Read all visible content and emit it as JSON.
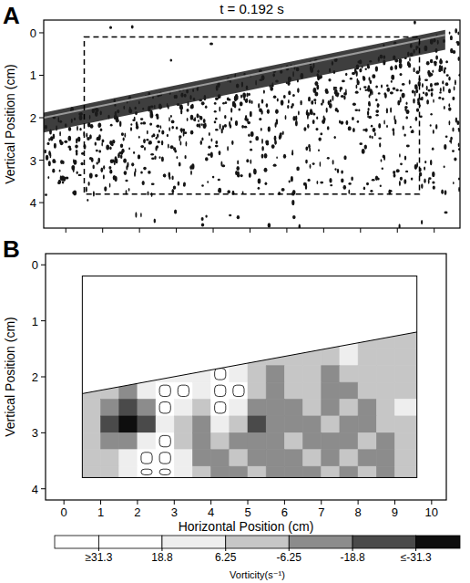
{
  "chart_data": [
    {
      "type": "image",
      "panel": "A",
      "title": "t = 0.192 s",
      "ylabel": "Vertical Position (cm)",
      "xlim": [
        -0.6,
        10.7
      ],
      "ylim": [
        4.6,
        -0.3
      ],
      "xticks": [
        0,
        1,
        2,
        3,
        4,
        5,
        6,
        7,
        8,
        9,
        10
      ],
      "yticks": [
        0,
        1,
        2,
        3,
        4
      ],
      "tick_labels": "y",
      "surface": {
        "x": [
          -0.6,
          10.3
        ],
        "y": [
          2.0,
          0.05
        ]
      },
      "roi": {
        "x": [
          0.5,
          9.6
        ],
        "y": [
          0.1,
          3.8
        ]
      }
    },
    {
      "type": "heatmap",
      "panel": "B",
      "xlabel": "Horizontal Position (cm)",
      "ylabel": "Vertical Position (cm)",
      "xlim": [
        -0.5,
        10.4
      ],
      "ylim": [
        4.2,
        -0.2
      ],
      "xticks": [
        0,
        1,
        2,
        3,
        4,
        5,
        6,
        7,
        8,
        9,
        10
      ],
      "yticks": [
        0,
        1,
        2,
        3,
        4
      ],
      "region": {
        "x": [
          0.5,
          9.6
        ],
        "y": [
          0.2,
          3.8
        ]
      },
      "mask_boundary": {
        "x": [
          0.5,
          9.6
        ],
        "y": [
          2.3,
          1.2
        ]
      },
      "x_edges": [
        0.5,
        1,
        1.5,
        2,
        2.5,
        3,
        3.5,
        4,
        4.5,
        5,
        5.5,
        6,
        6.5,
        7,
        7.5,
        8,
        8.5,
        9,
        9.6
      ],
      "y_edges": [
        1.2,
        1.5,
        1.8,
        2.1,
        2.4,
        2.7,
        3,
        3.3,
        3.6,
        3.8
      ],
      "z": [
        [
          null,
          null,
          null,
          null,
          null,
          null,
          null,
          null,
          null,
          null,
          null,
          null,
          null,
          2,
          8,
          4,
          -3,
          5
        ],
        [
          null,
          null,
          null,
          null,
          null,
          null,
          null,
          null,
          12,
          5,
          -4,
          3,
          6,
          -2,
          9,
          3,
          -5,
          2
        ],
        [
          null,
          null,
          null,
          10,
          18,
          14,
          8,
          22,
          15,
          4,
          -8,
          -3,
          4,
          -7,
          2,
          -4,
          5,
          -3
        ],
        [
          6,
          4,
          -10,
          14,
          28,
          20,
          12,
          30,
          26,
          6,
          -9,
          -6,
          3,
          -10,
          -8,
          -3,
          6,
          4
        ],
        [
          -4,
          -14,
          -28,
          -12,
          22,
          16,
          4,
          34,
          18,
          -8,
          -12,
          -9,
          -4,
          -8,
          -6,
          -9,
          2,
          7
        ],
        [
          -6,
          -22,
          -36,
          -20,
          8,
          6,
          -8,
          10,
          -4,
          -20,
          -12,
          -10,
          -8,
          -5,
          -9,
          -12,
          -4,
          3
        ],
        [
          2,
          -12,
          -16,
          14,
          30,
          4,
          -10,
          -6,
          -8,
          -10,
          -9,
          -4,
          -7,
          -11,
          -8,
          -6,
          -9,
          -2
        ],
        [
          6,
          0,
          10,
          36,
          40,
          12,
          -7,
          -9,
          -3,
          -11,
          -8,
          -12,
          -6,
          -9,
          -4,
          -8,
          -10,
          -6
        ],
        [
          4,
          2,
          14,
          24,
          26,
          8,
          -4,
          -8,
          -7,
          -5,
          -10,
          -7,
          -9,
          -3,
          -7,
          -5,
          -8,
          -4
        ]
      ],
      "colorbar": {
        "label": "Vorticity(s⁻¹)",
        "range": [
          40,
          -40
        ],
        "ticks": [
          {
            "value": 31.3,
            "label": "≥31.3"
          },
          18.8,
          6.25,
          -6.25,
          -18.8,
          {
            "value": -31.3,
            "label": "≤-31.3"
          }
        ]
      }
    }
  ]
}
